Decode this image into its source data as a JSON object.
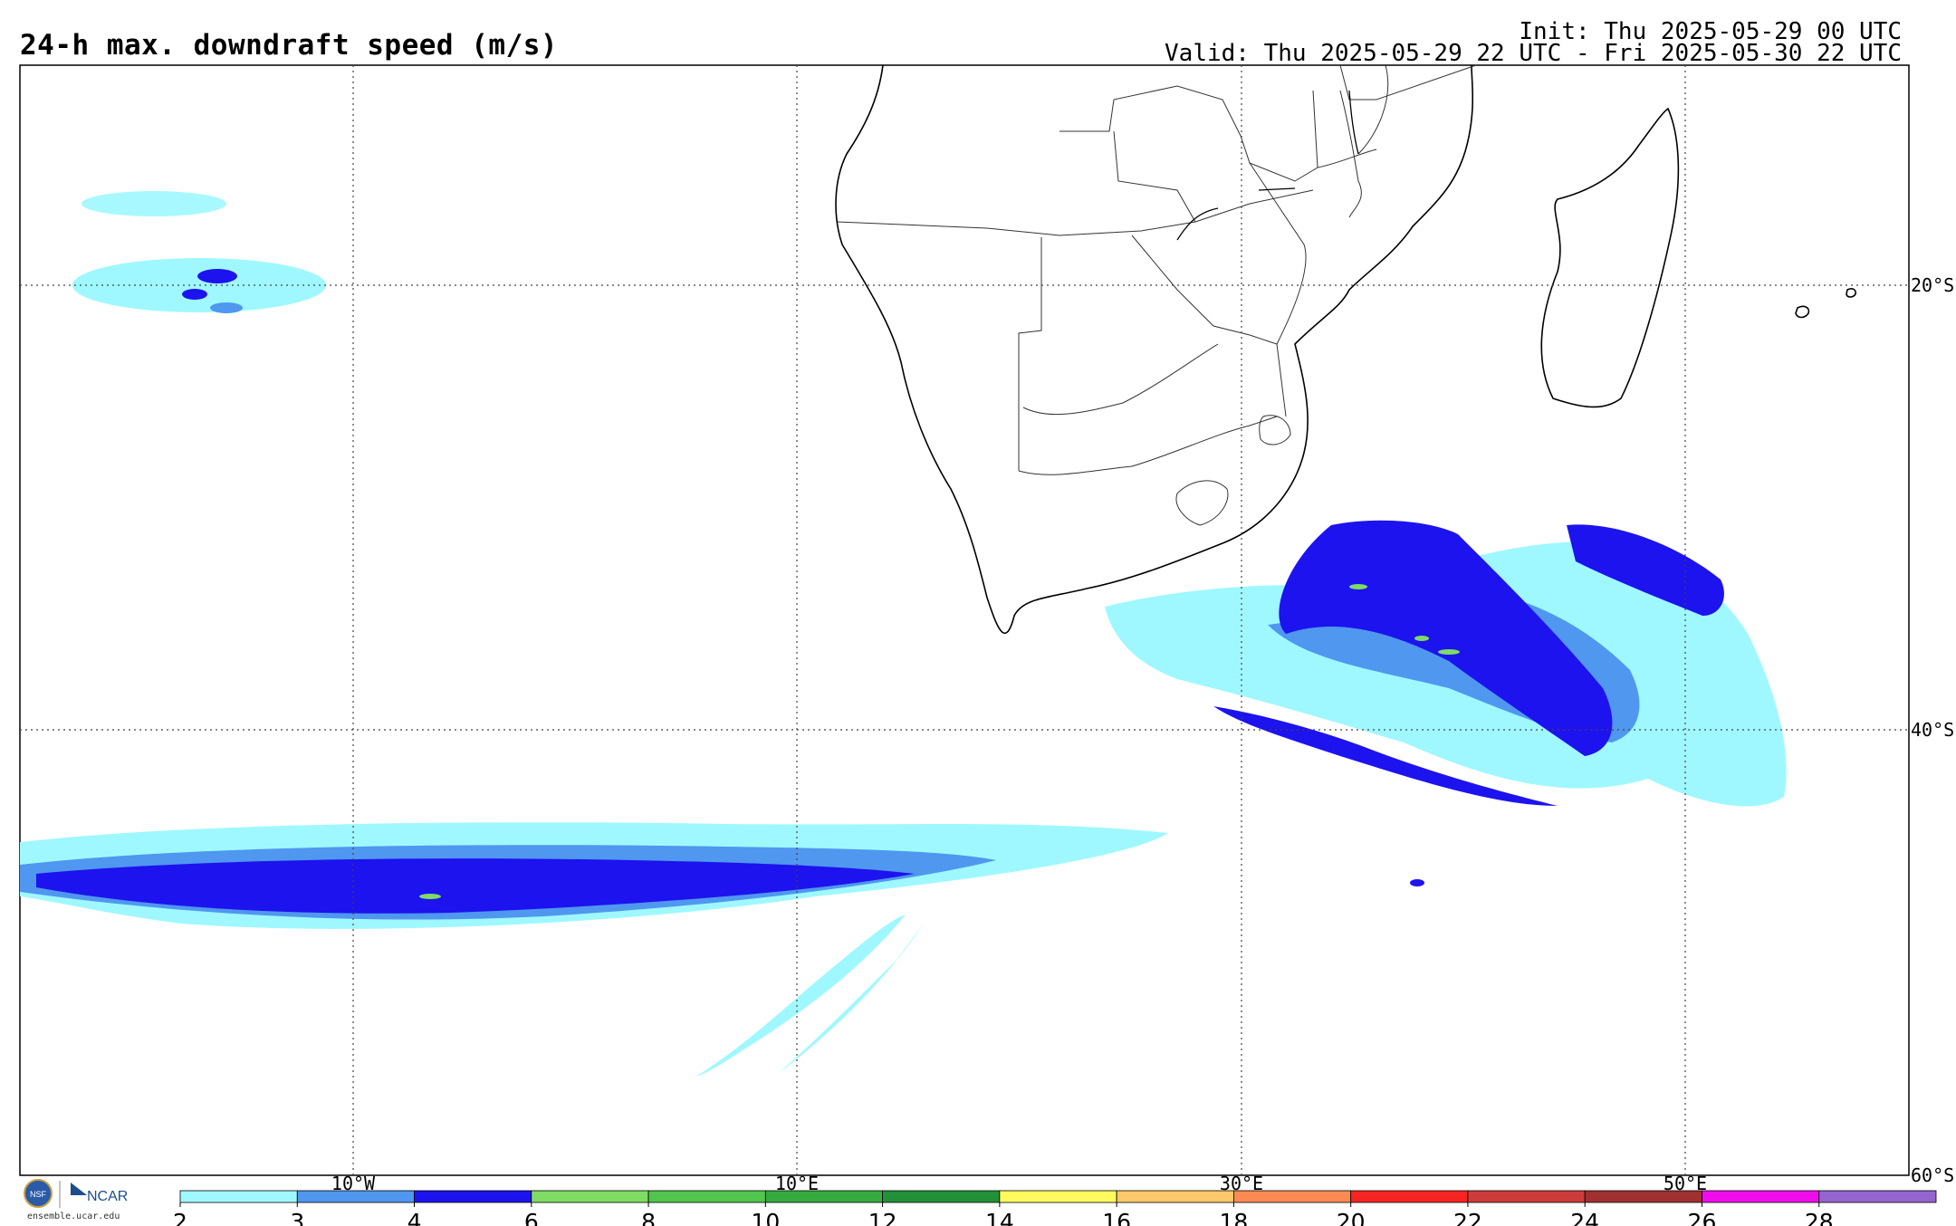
{
  "header": {
    "title": "24-h max. downdraft speed (m/s)",
    "init": "Init: Thu 2025-05-29 00 UTC",
    "valid": "Valid: Thu 2025-05-29 22 UTC - Fri 2025-05-30 22 UTC"
  },
  "grid": {
    "lat_labels": [
      "20°S",
      "40°S",
      "60°S"
    ],
    "lon_labels": [
      "10°W",
      "10°E",
      "30°E",
      "50°E"
    ]
  },
  "colorbar": {
    "ticks": [
      "2",
      "3",
      "4",
      "6",
      "8",
      "10",
      "12",
      "14",
      "16",
      "18",
      "20",
      "22",
      "24",
      "26",
      "28"
    ],
    "colors": [
      "#9ff8ff",
      "#4f97ef",
      "#1d13ee",
      "#7fdc63",
      "#52c54e",
      "#36ab40",
      "#23903a",
      "#fffa5d",
      "#fdc86a",
      "#fb8a53",
      "#f42522",
      "#cd3c3b",
      "#a13131",
      "#ef0ded",
      "#9565cf"
    ]
  },
  "footer": {
    "logo_text": "NCAR",
    "logo_badge": "NSF",
    "url": "ensemble.ucar.edu"
  },
  "palette": {
    "light": "#9ff8ff",
    "mid": "#4f97ef",
    "dark": "#1d13ee",
    "green": "#7fdc63"
  }
}
